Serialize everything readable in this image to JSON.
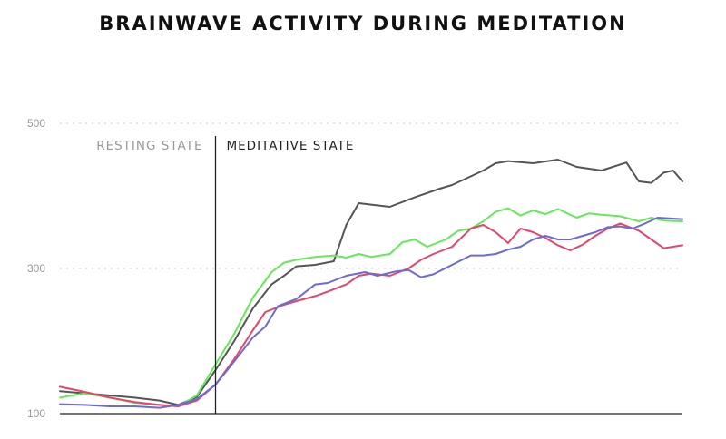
{
  "chart_data": {
    "type": "line",
    "title": "BRAINWAVE ACTIVITY DURING MEDITATION",
    "xlabel": "",
    "ylabel": "",
    "ylim": [
      100,
      620
    ],
    "xlim": [
      0,
      100
    ],
    "yticks": [
      100,
      300,
      500
    ],
    "grid": true,
    "annotations": [
      {
        "label": "RESTING STATE",
        "color": "#999999"
      },
      {
        "label": "MEDITATIVE STATE",
        "color": "#222222"
      }
    ],
    "divider_x": 25,
    "series": [
      {
        "name": "dark",
        "color": "#555555",
        "values": [
          [
            0,
            131
          ],
          [
            4,
            128
          ],
          [
            8,
            125
          ],
          [
            12,
            122
          ],
          [
            16,
            118
          ],
          [
            19,
            112
          ],
          [
            22,
            123
          ],
          [
            25,
            160
          ],
          [
            28,
            200
          ],
          [
            31,
            245
          ],
          [
            34,
            278
          ],
          [
            36,
            290
          ],
          [
            38,
            303
          ],
          [
            41,
            305
          ],
          [
            44,
            310
          ],
          [
            46,
            360
          ],
          [
            48,
            390
          ],
          [
            50,
            388
          ],
          [
            53,
            385
          ],
          [
            57,
            398
          ],
          [
            61,
            410
          ],
          [
            63,
            415
          ],
          [
            65,
            423
          ],
          [
            68,
            435
          ],
          [
            70,
            445
          ],
          [
            72,
            448
          ],
          [
            76,
            445
          ],
          [
            80,
            450
          ],
          [
            83,
            440
          ],
          [
            87,
            435
          ],
          [
            91,
            446
          ],
          [
            93,
            420
          ],
          [
            95,
            418
          ],
          [
            97,
            432
          ],
          [
            98.5,
            435
          ],
          [
            100,
            420
          ]
        ]
      },
      {
        "name": "green",
        "color": "#66e85a",
        "values": [
          [
            0,
            122
          ],
          [
            4,
            128
          ],
          [
            8,
            122
          ],
          [
            12,
            115
          ],
          [
            16,
            112
          ],
          [
            19,
            110
          ],
          [
            22,
            125
          ],
          [
            25,
            168
          ],
          [
            28,
            210
          ],
          [
            31,
            260
          ],
          [
            34,
            295
          ],
          [
            36,
            308
          ],
          [
            38,
            312
          ],
          [
            41,
            316
          ],
          [
            44,
            318
          ],
          [
            46,
            315
          ],
          [
            48,
            320
          ],
          [
            50,
            316
          ],
          [
            53,
            320
          ],
          [
            55,
            336
          ],
          [
            57,
            340
          ],
          [
            59,
            330
          ],
          [
            62,
            340
          ],
          [
            64,
            352
          ],
          [
            66,
            355
          ],
          [
            68,
            365
          ],
          [
            70,
            378
          ],
          [
            72,
            383
          ],
          [
            74,
            373
          ],
          [
            76,
            380
          ],
          [
            78,
            375
          ],
          [
            80,
            382
          ],
          [
            83,
            370
          ],
          [
            85,
            376
          ],
          [
            87,
            374
          ],
          [
            90,
            372
          ],
          [
            93,
            365
          ],
          [
            95,
            370
          ],
          [
            97,
            366
          ],
          [
            100,
            365
          ]
        ]
      },
      {
        "name": "red",
        "color": "#e2466b",
        "values": [
          [
            0,
            137
          ],
          [
            4,
            130
          ],
          [
            8,
            122
          ],
          [
            12,
            116
          ],
          [
            16,
            112
          ],
          [
            19,
            110
          ],
          [
            22,
            118
          ],
          [
            25,
            140
          ],
          [
            28,
            175
          ],
          [
            31,
            215
          ],
          [
            33,
            240
          ],
          [
            36,
            250
          ],
          [
            38,
            255
          ],
          [
            41,
            262
          ],
          [
            43,
            268
          ],
          [
            46,
            278
          ],
          [
            48,
            290
          ],
          [
            50,
            293
          ],
          [
            53,
            290
          ],
          [
            56,
            300
          ],
          [
            58,
            312
          ],
          [
            60,
            320
          ],
          [
            63,
            330
          ],
          [
            66,
            355
          ],
          [
            68,
            360
          ],
          [
            70,
            350
          ],
          [
            72,
            335
          ],
          [
            74,
            355
          ],
          [
            76,
            350
          ],
          [
            78,
            342
          ],
          [
            80,
            332
          ],
          [
            82,
            325
          ],
          [
            84,
            333
          ],
          [
            86,
            345
          ],
          [
            88,
            355
          ],
          [
            90,
            362
          ],
          [
            93,
            352
          ],
          [
            95,
            340
          ],
          [
            97,
            328
          ],
          [
            100,
            332
          ]
        ]
      },
      {
        "name": "blue",
        "color": "#6b6bd6",
        "values": [
          [
            0,
            113
          ],
          [
            4,
            112
          ],
          [
            8,
            110
          ],
          [
            12,
            110
          ],
          [
            16,
            108
          ],
          [
            19,
            112
          ],
          [
            22,
            120
          ],
          [
            25,
            140
          ],
          [
            28,
            172
          ],
          [
            31,
            205
          ],
          [
            33,
            220
          ],
          [
            35,
            248
          ],
          [
            38,
            258
          ],
          [
            41,
            278
          ],
          [
            43,
            280
          ],
          [
            46,
            290
          ],
          [
            49,
            295
          ],
          [
            51,
            290
          ],
          [
            54,
            296
          ],
          [
            56,
            298
          ],
          [
            58,
            288
          ],
          [
            60,
            292
          ],
          [
            63,
            305
          ],
          [
            66,
            318
          ],
          [
            68,
            318
          ],
          [
            70,
            320
          ],
          [
            72,
            326
          ],
          [
            74,
            330
          ],
          [
            76,
            340
          ],
          [
            78,
            345
          ],
          [
            80,
            340
          ],
          [
            82,
            340
          ],
          [
            84,
            345
          ],
          [
            86,
            350
          ],
          [
            88,
            357
          ],
          [
            90,
            358
          ],
          [
            92,
            355
          ],
          [
            94,
            362
          ],
          [
            96,
            370
          ],
          [
            100,
            368
          ]
        ]
      }
    ]
  }
}
